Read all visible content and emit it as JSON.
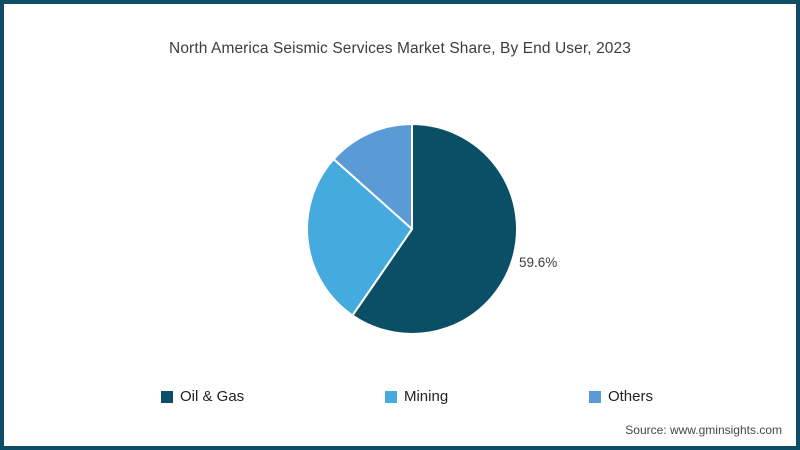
{
  "title": "North America Seismic Services Market Share, By End User, 2023",
  "source_text": "Source: www.gminsights.com",
  "colors": {
    "frame_border": "#0d4d66",
    "background": "#ffffff",
    "title_text": "#3d3d3d",
    "slice_separator": "#ffffff"
  },
  "chart_data": {
    "type": "pie",
    "title": "North America Seismic Services Market Share, By End User, 2023",
    "categories": [
      "Oil & Gas",
      "Mining",
      "Others"
    ],
    "values": [
      59.6,
      27.0,
      13.4
    ],
    "colors": [
      "#0b4f67",
      "#45aadd",
      "#5b9bd5"
    ],
    "value_labels": [
      "59.6%",
      "",
      ""
    ],
    "start_angle_deg": 0,
    "direction": "clockwise",
    "legend_position": "bottom",
    "labeled_slice_note": "Only the Oil & Gas slice shows its percentage label (59.6%) to the right of the pie"
  },
  "legend": {
    "items": [
      {
        "label": "Oil & Gas"
      },
      {
        "label": "Mining"
      },
      {
        "label": "Others"
      }
    ]
  }
}
